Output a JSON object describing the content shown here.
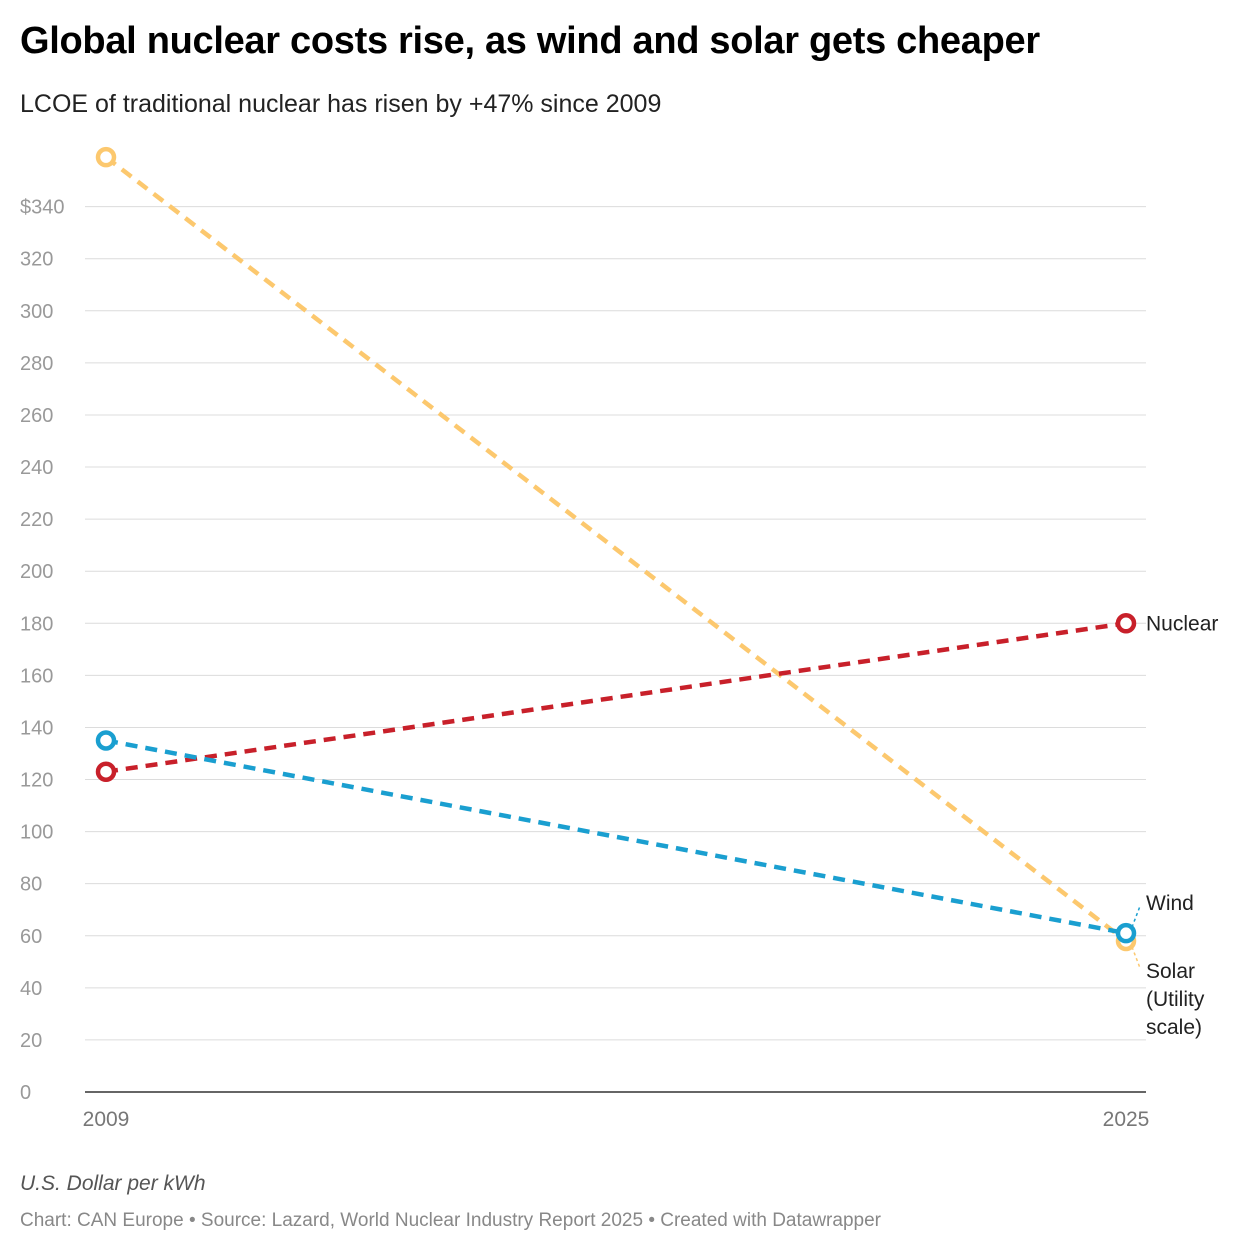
{
  "header": {
    "title": "Global nuclear costs rise, as wind and solar gets cheaper",
    "subtitle": "LCOE of traditional nuclear has risen by +47% since 2009"
  },
  "footer": {
    "unit_note": "U.S. Dollar per kWh",
    "credit": "Chart: CAN Europe • Source: Lazard, World Nuclear Industry Report 2025 • Created with Datawrapper"
  },
  "chart_data": {
    "type": "line",
    "x": [
      "2009",
      "2025"
    ],
    "ylim": [
      0,
      360
    ],
    "y_ticks": [
      0,
      20,
      40,
      60,
      80,
      100,
      120,
      140,
      160,
      180,
      200,
      220,
      240,
      260,
      280,
      300,
      320,
      340
    ],
    "y_tick_labels": [
      "0",
      "20",
      "40",
      "60",
      "80",
      "100",
      "120",
      "140",
      "160",
      "180",
      "200",
      "220",
      "240",
      "260",
      "280",
      "300",
      "320",
      "$340"
    ],
    "grid": true,
    "series": [
      {
        "name": "Solar (Utility scale)",
        "label_lines": [
          "Solar",
          "(Utility",
          "scale)"
        ],
        "color": "#fcc86e",
        "values": [
          359,
          58
        ]
      },
      {
        "name": "Nuclear",
        "label_lines": [
          "Nuclear"
        ],
        "color": "#c8202a",
        "values": [
          123,
          180
        ]
      },
      {
        "name": "Wind",
        "label_lines": [
          "Wind"
        ],
        "color": "#1a9fd0",
        "values": [
          135,
          61
        ]
      }
    ]
  }
}
